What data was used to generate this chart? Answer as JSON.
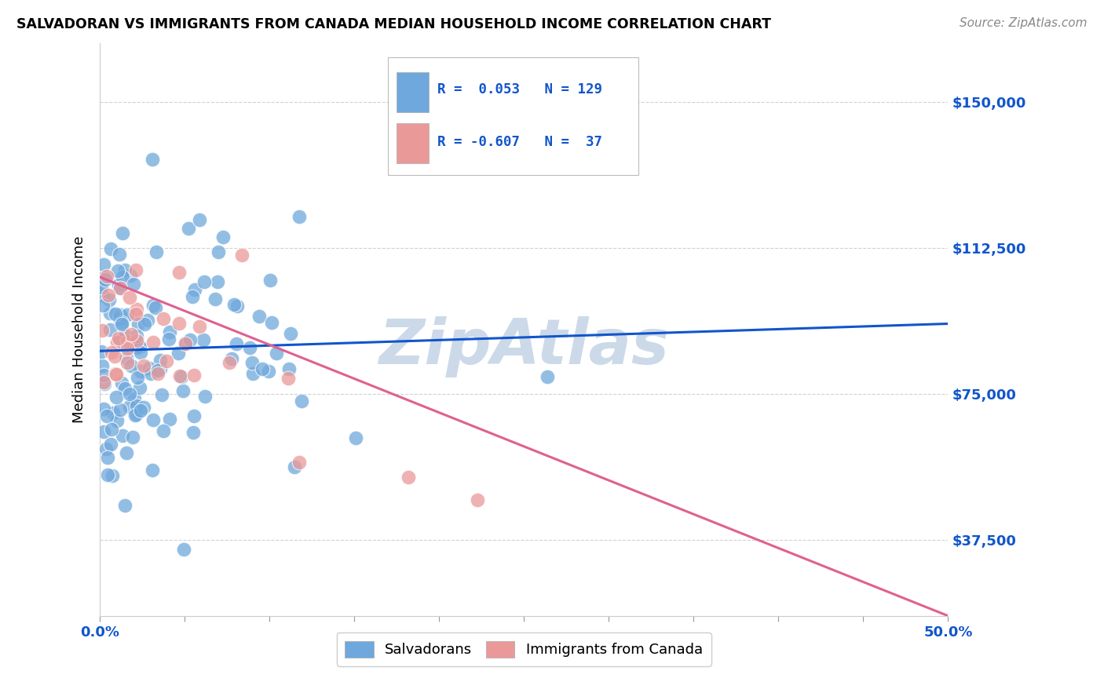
{
  "title": "SALVADORAN VS IMMIGRANTS FROM CANADA MEDIAN HOUSEHOLD INCOME CORRELATION CHART",
  "source": "Source: ZipAtlas.com",
  "ylabel": "Median Household Income",
  "yticks": [
    37500,
    75000,
    112500,
    150000
  ],
  "ytick_labels": [
    "$37,500",
    "$75,000",
    "$112,500",
    "$150,000"
  ],
  "xlim": [
    0.0,
    0.5
  ],
  "ylim": [
    18000,
    165000
  ],
  "blue_R": 0.053,
  "blue_N": 129,
  "pink_R": -0.607,
  "pink_N": 37,
  "blue_color": "#6fa8dc",
  "pink_color": "#ea9999",
  "blue_line_color": "#1155cc",
  "pink_line_color": "#e06090",
  "legend_R_color": "#1155cc",
  "tick_color": "#1155cc",
  "background_color": "#ffffff",
  "grid_color": "#cccccc",
  "watermark_color": "#ccd9e8"
}
